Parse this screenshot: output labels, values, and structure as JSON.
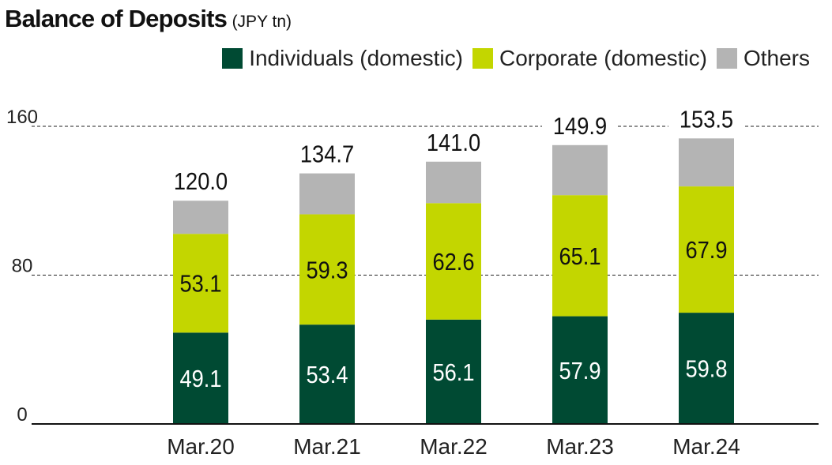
{
  "chart_data": {
    "type": "bar",
    "stacked": true,
    "title": "Balance of Deposits",
    "subtitle": "(JPY tn)",
    "categories": [
      "Mar.20",
      "Mar.21",
      "Mar.22",
      "Mar.23",
      "Mar.24"
    ],
    "series": [
      {
        "name": "Individuals (domestic)",
        "color": "#004a33",
        "values": [
          49.1,
          53.4,
          56.1,
          57.9,
          59.8
        ],
        "show_labels": true
      },
      {
        "name": "Corporate (domestic)",
        "color": "#c3d600",
        "values": [
          53.1,
          59.3,
          62.6,
          65.1,
          67.9
        ],
        "show_labels": true
      },
      {
        "name": "Others",
        "color": "#b4b4b4",
        "values": [
          17.8,
          22.0,
          22.3,
          26.9,
          25.8
        ],
        "show_labels": false
      }
    ],
    "totals": [
      120.0,
      134.7,
      141.0,
      149.9,
      153.5
    ],
    "y_ticks": [
      "0",
      "80",
      "160"
    ],
    "ylim": [
      0,
      160
    ],
    "grid": "dashed at 80 and 160",
    "legend_position": "top-right"
  }
}
